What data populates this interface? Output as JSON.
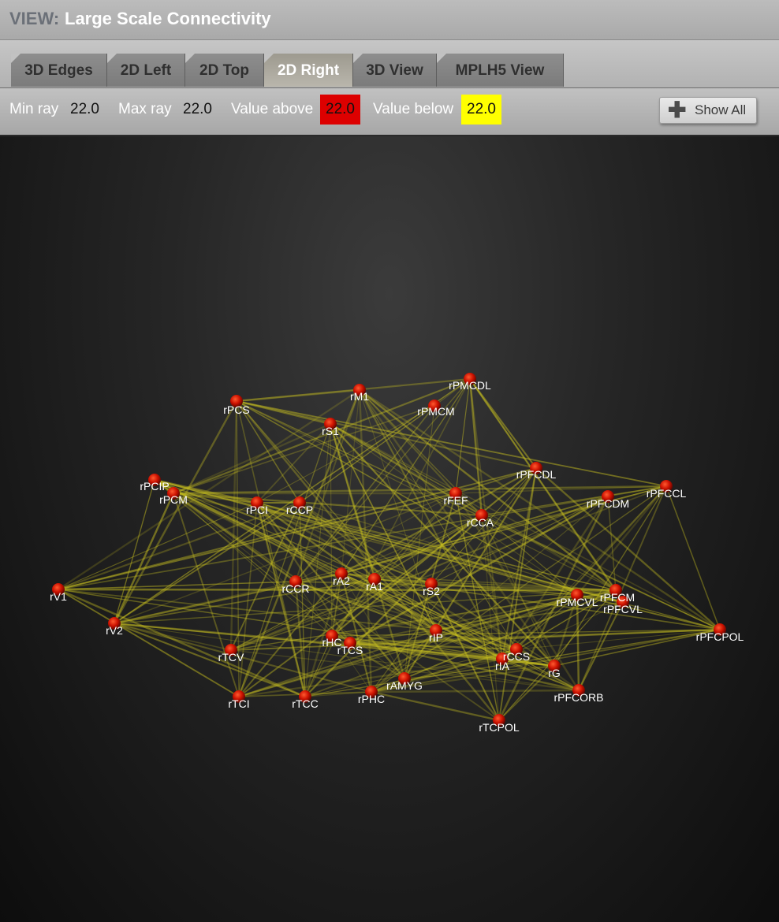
{
  "header": {
    "view_label": "VIEW:",
    "title": "Large Scale Connectivity"
  },
  "tabs": [
    {
      "label": "3D Edges",
      "active": false
    },
    {
      "label": "2D Left",
      "active": false
    },
    {
      "label": "2D Top",
      "active": false
    },
    {
      "label": "2D Right",
      "active": true
    },
    {
      "label": "3D View",
      "active": false
    },
    {
      "label": "MPLH5 View",
      "active": false
    }
  ],
  "toolbar": {
    "min_ray_label": "Min ray",
    "min_ray_value": "22.0",
    "max_ray_label": "Max ray",
    "max_ray_value": "22.0",
    "value_above_label": "Value above",
    "value_above_value": "22.0",
    "value_above_color": "#dd0000",
    "value_below_label": "Value below",
    "value_below_value": "22.0",
    "value_below_color": "#ffff00",
    "show_all_label": "Show All",
    "show_all_icon": "plus-icon"
  },
  "graph": {
    "node_color": "#cc1100",
    "edge_color": "#c8c020",
    "label_color": "#ffffff",
    "nodes": [
      "rPCS",
      "rM1",
      "rPMCDL",
      "rS1",
      "rPMCM",
      "rPCIP",
      "rPCM",
      "rPCI",
      "rCCP",
      "rFEF",
      "rPFCDL",
      "rCCA",
      "rPFCDM",
      "rPFCCL",
      "rV1",
      "rA2",
      "rA1",
      "rCCR",
      "rS2",
      "rPMCVL",
      "rPFCM",
      "rPFCVL",
      "rV2",
      "rHC",
      "rTCS",
      "rIP",
      "rCCS",
      "rIA",
      "rTCV",
      "rPFCPOL",
      "rG",
      "rAMYG",
      "rTCI",
      "rTCC",
      "rPHC",
      "rPFCORB",
      "rTCPOL"
    ]
  }
}
